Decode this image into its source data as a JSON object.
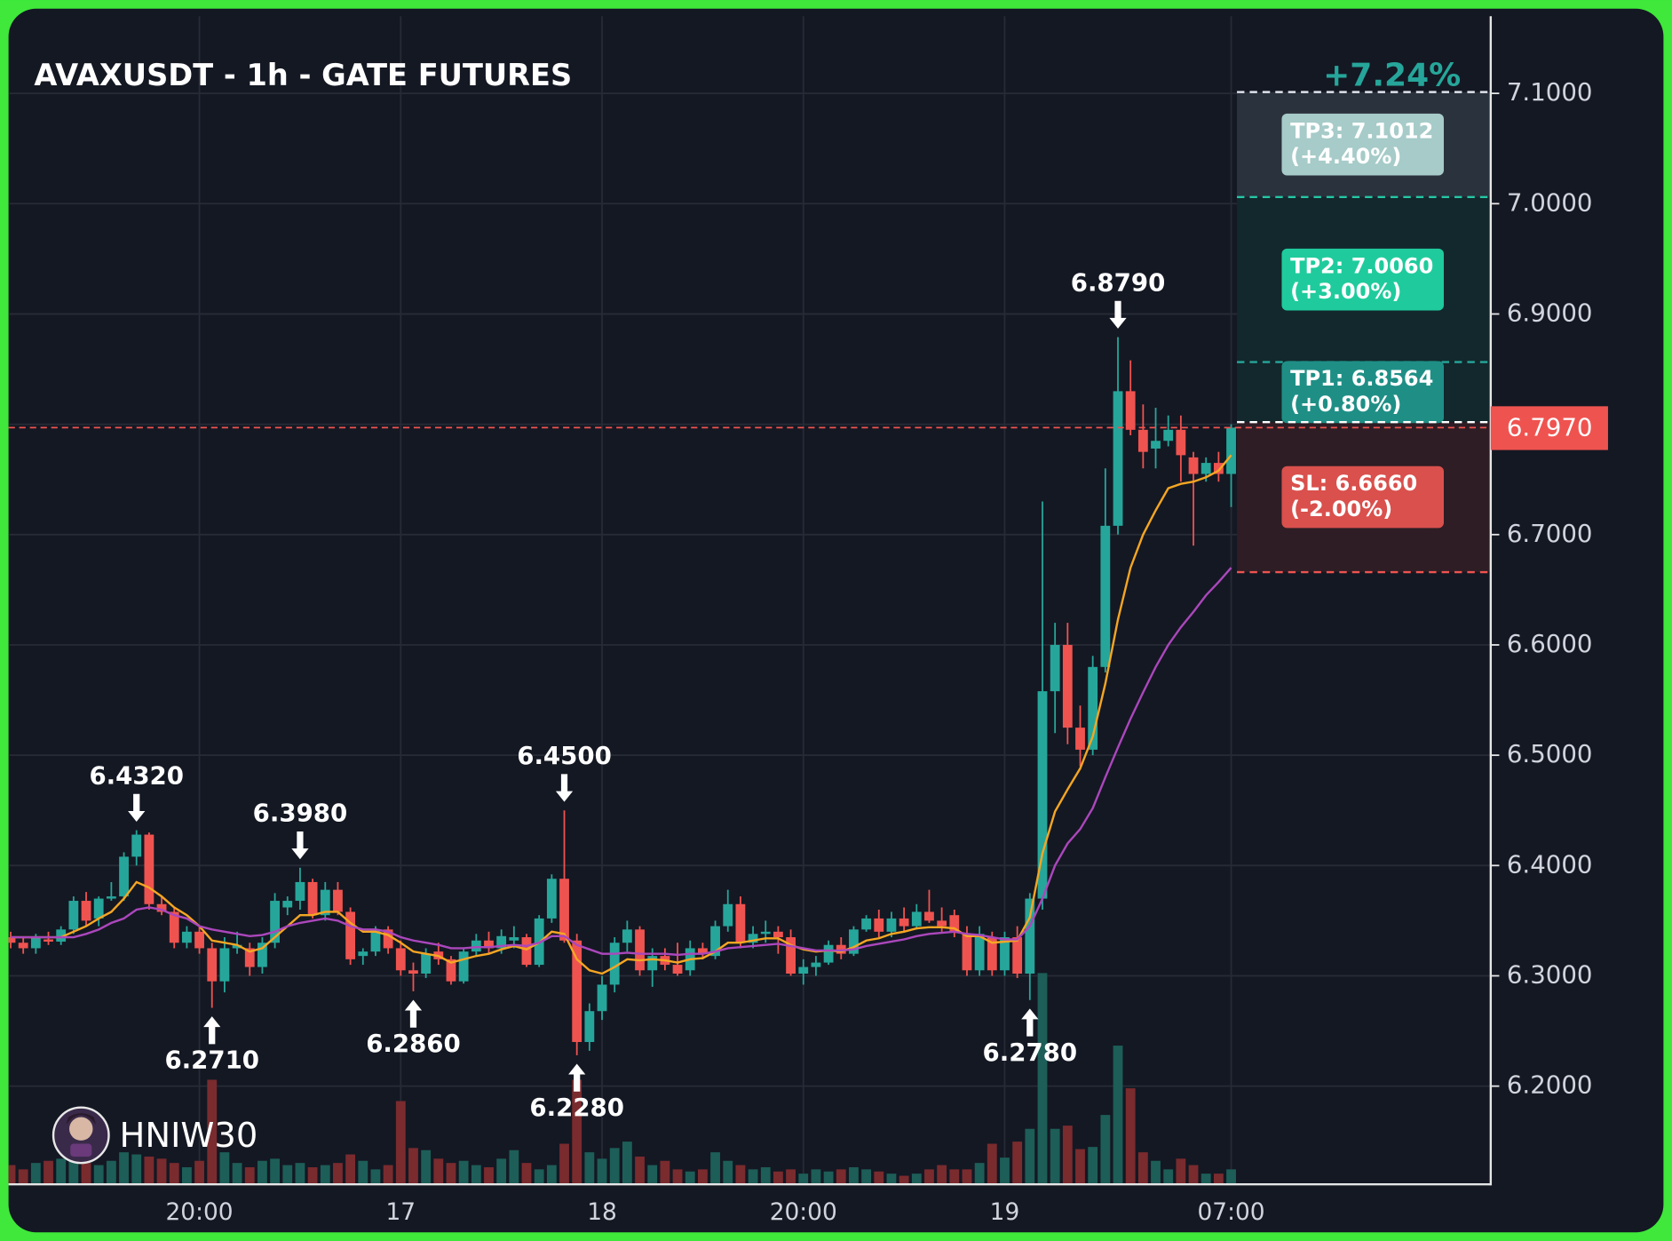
{
  "chart_data": {
    "type": "candlestick",
    "title": "AVAXUSDT - 1h - GATE FUTURES",
    "change": "+7.24%",
    "watermark": "HNIW30",
    "categories": [
      null,
      null,
      null,
      null,
      null,
      null,
      null,
      null,
      null,
      null,
      null,
      null,
      null,
      null,
      null,
      "20:00",
      null,
      null,
      null,
      null,
      null,
      null,
      null,
      null,
      null,
      null,
      null,
      null,
      null,
      null,
      null,
      "17",
      null,
      null,
      null,
      null,
      null,
      null,
      null,
      null,
      null,
      null,
      null,
      null,
      null,
      null,
      null,
      "18",
      null,
      null,
      null,
      null,
      null,
      null,
      null,
      null,
      null,
      null,
      null,
      null,
      null,
      null,
      null,
      "20:00",
      null,
      null,
      null,
      null,
      null,
      null,
      null,
      null,
      null,
      null,
      null,
      null,
      null,
      null,
      null,
      "19",
      null,
      null,
      null,
      null,
      null,
      null,
      null,
      null,
      null,
      null,
      null,
      null,
      null,
      null,
      null,
      null,
      null,
      "07:00"
    ],
    "open": [
      6.335,
      6.33,
      6.325,
      6.333,
      6.331,
      6.342,
      6.368,
      6.352,
      6.37,
      6.372,
      6.408,
      6.428,
      6.365,
      6.358,
      6.33,
      6.34,
      6.325,
      6.295,
      6.325,
      6.325,
      6.308,
      6.33,
      6.362,
      6.368,
      6.385,
      6.355,
      6.378,
      6.358,
      6.318,
      6.322,
      6.342,
      6.325,
      6.305,
      6.302,
      6.322,
      6.315,
      6.295,
      6.322,
      6.332,
      6.325,
      6.332,
      6.335,
      6.31,
      6.352,
      6.388,
      6.332,
      6.24,
      6.268,
      6.292,
      6.33,
      6.342,
      6.305,
      6.318,
      6.31,
      6.305,
      6.325,
      6.318,
      6.345,
      6.365,
      6.33,
      6.338,
      6.34,
      6.335,
      6.302,
      6.308,
      6.312,
      6.328,
      6.32,
      6.342,
      6.352,
      6.34,
      6.352,
      6.345,
      6.358,
      6.35,
      6.355,
      6.338,
      6.305,
      6.335,
      6.305,
      6.335,
      6.302,
      6.37,
      6.558,
      6.6,
      6.525,
      6.505,
      6.58,
      6.708,
      6.83,
      6.795,
      6.778,
      6.785,
      6.795,
      6.77,
      6.755,
      6.765,
      6.755
    ],
    "high": [
      6.34,
      6.335,
      6.338,
      6.34,
      6.345,
      6.372,
      6.376,
      6.372,
      6.385,
      6.412,
      6.432,
      6.43,
      6.372,
      6.362,
      6.345,
      6.345,
      6.33,
      6.335,
      6.34,
      6.33,
      6.335,
      6.375,
      6.372,
      6.398,
      6.388,
      6.385,
      6.385,
      6.362,
      6.325,
      6.345,
      6.345,
      6.332,
      6.312,
      6.325,
      6.33,
      6.318,
      6.325,
      6.338,
      6.34,
      6.342,
      6.345,
      6.338,
      6.355,
      6.392,
      6.45,
      6.338,
      6.275,
      6.3,
      6.335,
      6.35,
      6.345,
      6.325,
      6.325,
      6.33,
      6.332,
      6.33,
      6.35,
      6.378,
      6.372,
      6.345,
      6.35,
      6.345,
      6.342,
      6.315,
      6.318,
      6.332,
      6.335,
      6.345,
      6.355,
      6.36,
      6.358,
      6.362,
      6.365,
      6.378,
      6.362,
      6.36,
      6.345,
      6.345,
      6.34,
      6.34,
      6.345,
      6.375,
      6.73,
      6.62,
      6.62,
      6.545,
      6.59,
      6.76,
      6.879,
      6.858,
      6.818,
      6.815,
      6.808,
      6.808,
      6.775,
      6.77,
      6.775,
      6.8
    ],
    "low": [
      6.325,
      6.32,
      6.32,
      6.328,
      6.328,
      6.338,
      6.345,
      6.345,
      6.368,
      6.368,
      6.4,
      6.36,
      6.355,
      6.325,
      6.325,
      6.32,
      6.271,
      6.285,
      6.32,
      6.3,
      6.302,
      6.325,
      6.355,
      6.36,
      6.352,
      6.35,
      6.355,
      6.31,
      6.31,
      6.318,
      6.32,
      6.3,
      6.286,
      6.298,
      6.31,
      6.292,
      6.293,
      6.318,
      6.32,
      6.32,
      6.325,
      6.308,
      6.308,
      6.348,
      6.33,
      6.228,
      6.232,
      6.26,
      6.285,
      6.322,
      6.3,
      6.29,
      6.305,
      6.3,
      6.3,
      6.315,
      6.315,
      6.34,
      6.325,
      6.325,
      6.33,
      6.32,
      6.3,
      6.292,
      6.3,
      6.31,
      6.315,
      6.318,
      6.34,
      6.335,
      6.335,
      6.34,
      6.342,
      6.348,
      6.34,
      6.335,
      6.3,
      6.3,
      6.3,
      6.3,
      6.298,
      6.278,
      6.36,
      6.52,
      6.51,
      6.49,
      6.5,
      6.575,
      6.7,
      6.79,
      6.76,
      6.76,
      6.78,
      6.748,
      6.69,
      6.748,
      6.748,
      6.725
    ],
    "close": [
      6.33,
      6.325,
      6.335,
      6.331,
      6.342,
      6.368,
      6.35,
      6.37,
      6.372,
      6.408,
      6.428,
      6.365,
      6.358,
      6.33,
      6.34,
      6.325,
      6.295,
      6.325,
      6.328,
      6.308,
      6.33,
      6.368,
      6.368,
      6.385,
      6.355,
      6.378,
      6.358,
      6.315,
      6.322,
      6.342,
      6.325,
      6.305,
      6.302,
      6.32,
      6.315,
      6.295,
      6.322,
      6.332,
      6.325,
      6.336,
      6.335,
      6.31,
      6.352,
      6.388,
      6.332,
      6.24,
      6.268,
      6.292,
      6.33,
      6.342,
      6.305,
      6.318,
      6.31,
      6.302,
      6.325,
      6.32,
      6.345,
      6.365,
      6.33,
      6.338,
      6.34,
      6.335,
      6.302,
      6.308,
      6.312,
      6.328,
      6.32,
      6.342,
      6.352,
      6.34,
      6.352,
      6.345,
      6.358,
      6.35,
      6.345,
      6.34,
      6.305,
      6.338,
      6.305,
      6.335,
      6.302,
      6.37,
      6.558,
      6.6,
      6.525,
      6.505,
      6.58,
      6.708,
      6.83,
      6.795,
      6.775,
      6.785,
      6.795,
      6.772,
      6.755,
      6.765,
      6.755,
      6.797
    ],
    "volume": [
      18,
      14,
      20,
      22,
      24,
      26,
      20,
      18,
      22,
      30,
      28,
      26,
      24,
      20,
      16,
      22,
      98,
      30,
      20,
      16,
      22,
      24,
      18,
      20,
      16,
      18,
      20,
      28,
      22,
      14,
      18,
      78,
      34,
      32,
      24,
      20,
      22,
      18,
      16,
      24,
      32,
      20,
      14,
      18,
      38,
      98,
      30,
      24,
      34,
      40,
      26,
      18,
      22,
      14,
      12,
      14,
      30,
      22,
      18,
      14,
      16,
      12,
      14,
      10,
      14,
      12,
      14,
      16,
      14,
      12,
      10,
      8,
      10,
      14,
      18,
      14,
      14,
      20,
      38,
      25,
      40,
      52,
      198,
      52,
      55,
      33,
      35,
      65,
      130,
      90,
      30,
      22,
      14,
      24,
      18,
      10,
      10,
      14
    ],
    "up_color": "#26a69a",
    "down_color": "#ef5350",
    "up_volume_color": "#1d5e58",
    "down_volume_color": "#7a2b2e",
    "lines": [
      {
        "color": "#f5a623",
        "values": [
          6.335,
          6.335,
          6.335,
          6.335,
          6.335,
          6.34,
          6.345,
          6.352,
          6.358,
          6.37,
          6.385,
          6.38,
          6.372,
          6.362,
          6.355,
          6.345,
          6.332,
          6.33,
          6.328,
          6.322,
          6.325,
          6.335,
          6.345,
          6.355,
          6.355,
          6.358,
          6.358,
          6.348,
          6.34,
          6.34,
          6.337,
          6.33,
          6.322,
          6.32,
          6.318,
          6.312,
          6.315,
          6.318,
          6.32,
          6.324,
          6.327,
          6.324,
          6.33,
          6.34,
          6.338,
          6.315,
          6.305,
          6.302,
          6.308,
          6.315,
          6.314,
          6.315,
          6.314,
          6.312,
          6.315,
          6.316,
          6.322,
          6.33,
          6.33,
          6.332,
          6.334,
          6.334,
          6.328,
          6.324,
          6.322,
          6.323,
          6.322,
          6.326,
          6.332,
          6.334,
          6.338,
          6.34,
          6.343,
          6.344,
          6.344,
          6.343,
          6.336,
          6.336,
          6.33,
          6.331,
          6.332,
          6.353,
          6.411,
          6.449,
          6.469,
          6.488,
          6.517,
          6.565,
          6.623,
          6.67,
          6.7,
          6.722,
          6.742,
          6.746,
          6.748,
          6.752,
          6.758,
          6.772
        ]
      },
      {
        "color": "#ab47bc",
        "values": [
          6.335,
          6.335,
          6.335,
          6.335,
          6.335,
          6.335,
          6.338,
          6.342,
          6.348,
          6.352,
          6.36,
          6.362,
          6.36,
          6.355,
          6.352,
          6.345,
          6.342,
          6.34,
          6.338,
          6.336,
          6.337,
          6.34,
          6.345,
          6.348,
          6.35,
          6.352,
          6.35,
          6.345,
          6.342,
          6.342,
          6.34,
          6.335,
          6.332,
          6.33,
          6.328,
          6.325,
          6.325,
          6.326,
          6.326,
          6.327,
          6.328,
          6.327,
          6.33,
          6.336,
          6.336,
          6.328,
          6.324,
          6.32,
          6.32,
          6.321,
          6.32,
          6.32,
          6.32,
          6.319,
          6.32,
          6.32,
          6.322,
          6.325,
          6.326,
          6.327,
          6.328,
          6.329,
          6.327,
          6.325,
          6.323,
          6.323,
          6.323,
          6.324,
          6.327,
          6.329,
          6.331,
          6.333,
          6.336,
          6.338,
          6.339,
          6.34,
          6.338,
          6.337,
          6.335,
          6.333,
          6.333,
          6.345,
          6.37,
          6.4,
          6.42,
          6.433,
          6.452,
          6.48,
          6.507,
          6.533,
          6.557,
          6.58,
          6.6,
          6.616,
          6.63,
          6.645,
          6.657,
          6.67
        ]
      }
    ],
    "ylim": [
      6.111,
      7.17
    ],
    "yticks": [
      {
        "value": 7.1,
        "label": "7.1000"
      },
      {
        "value": 7.0,
        "label": "7.0000"
      },
      {
        "value": 6.9,
        "label": "6.9000"
      },
      {
        "value": 6.8,
        "label": "6.8000"
      },
      {
        "value": 6.7,
        "label": "6.7000"
      },
      {
        "value": 6.6,
        "label": "6.6000"
      },
      {
        "value": 6.5,
        "label": "6.5000"
      },
      {
        "value": 6.4,
        "label": "6.4000"
      },
      {
        "value": 6.3,
        "label": "6.3000"
      },
      {
        "value": 6.2,
        "label": "6.2000"
      }
    ],
    "grid": true,
    "last_price": {
      "value": 6.797,
      "label": "6.7970",
      "color": "#ef5350"
    },
    "entry": {
      "value": 6.802,
      "color": "#ffffff"
    },
    "levels": [
      {
        "label": "TP3: 7.1012",
        "note": "(+4.40%)",
        "value": 7.1012,
        "line_color": "#e0e3eb",
        "box_color": "#a6cbc8",
        "zone_color": "#2a323d"
      },
      {
        "label": "TP2: 7.0060",
        "note": "(+3.00%)",
        "value": 7.006,
        "line_color": "#26c6a6",
        "box_color": "#1fcb9c",
        "zone_color": "#12282c"
      },
      {
        "label": "TP1: 6.8564",
        "note": "(+0.80%)",
        "value": 6.8564,
        "line_color": "#26a69a",
        "box_color": "#1f8f86",
        "zone_color": "#12282c"
      },
      {
        "label": "SL: 6.6660",
        "note": "(-2.00%)",
        "value": 6.666,
        "line_color": "#ef5350",
        "box_color": "#d9504d",
        "zone_color": "#2e1d24"
      }
    ],
    "annotations": [
      {
        "value": 6.432,
        "label": "6.4320"
      },
      {
        "value": 6.271,
        "label": "6.2710"
      },
      {
        "value": 6.398,
        "label": "6.3980"
      },
      {
        "value": 6.286,
        "label": "6.2860"
      },
      {
        "value": 6.45,
        "label": "6.4500"
      },
      {
        "value": 6.228,
        "label": "6.2280"
      },
      {
        "value": 6.278,
        "label": "6.2780"
      },
      {
        "value": 6.879,
        "label": "6.8790"
      }
    ]
  }
}
